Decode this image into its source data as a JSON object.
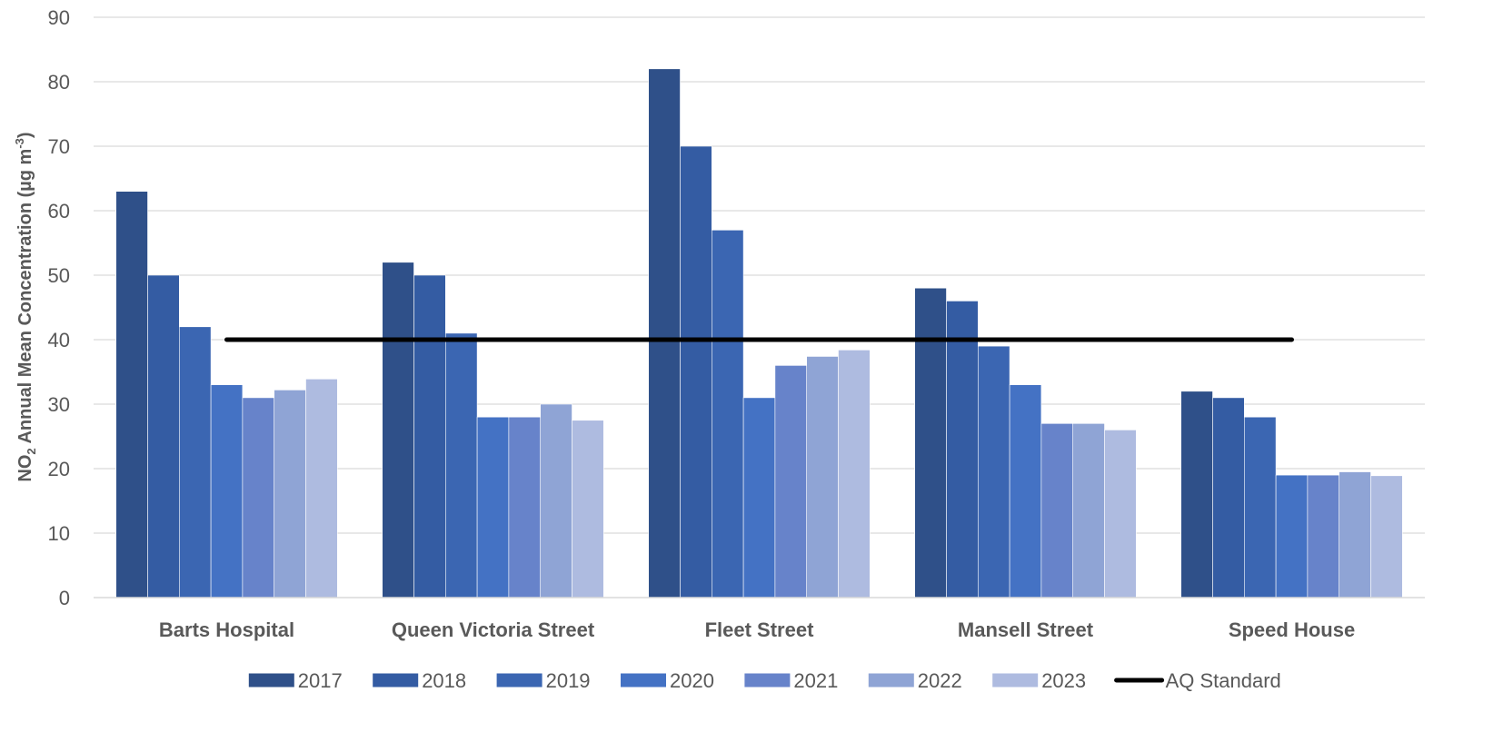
{
  "chart_data": {
    "type": "bar",
    "title": "",
    "xlabel": "",
    "ylabel": {
      "prefix": "NO",
      "subscript": "2",
      "middle": " Annual Mean Concentration (µg m",
      "superscript": "-3",
      "suffix": ")"
    },
    "ylim": [
      0,
      90
    ],
    "yticks": [
      "0",
      "10",
      "20",
      "30",
      "40",
      "50",
      "60",
      "70",
      "80",
      "90"
    ],
    "grid": true,
    "legend_position": "bottom",
    "categories": [
      "Barts Hospital",
      "Queen Victoria Street",
      "Fleet Street",
      "Mansell Street",
      "Speed House"
    ],
    "series": [
      {
        "name": "2017",
        "color": "#2F5089",
        "values": [
          63,
          52,
          82,
          48,
          32
        ]
      },
      {
        "name": "2018",
        "color": "#345CA3",
        "values": [
          50,
          50,
          70,
          46,
          31
        ]
      },
      {
        "name": "2019",
        "color": "#3B66B2",
        "values": [
          42,
          41,
          57,
          39,
          28
        ]
      },
      {
        "name": "2020",
        "color": "#4472C4",
        "values": [
          33,
          28,
          31,
          33,
          19
        ]
      },
      {
        "name": "2021",
        "color": "#6783CA",
        "values": [
          31,
          28,
          36,
          27,
          19
        ]
      },
      {
        "name": "2022",
        "color": "#8FA4D5",
        "values": [
          32.2,
          30,
          37.4,
          27,
          19.5
        ]
      },
      {
        "name": "2023",
        "color": "#AEBBE0",
        "values": [
          33.9,
          27.5,
          38.4,
          26,
          18.9
        ]
      }
    ],
    "reference_line": {
      "name": "AQ Standard",
      "value": 40,
      "color": "#000000"
    }
  }
}
